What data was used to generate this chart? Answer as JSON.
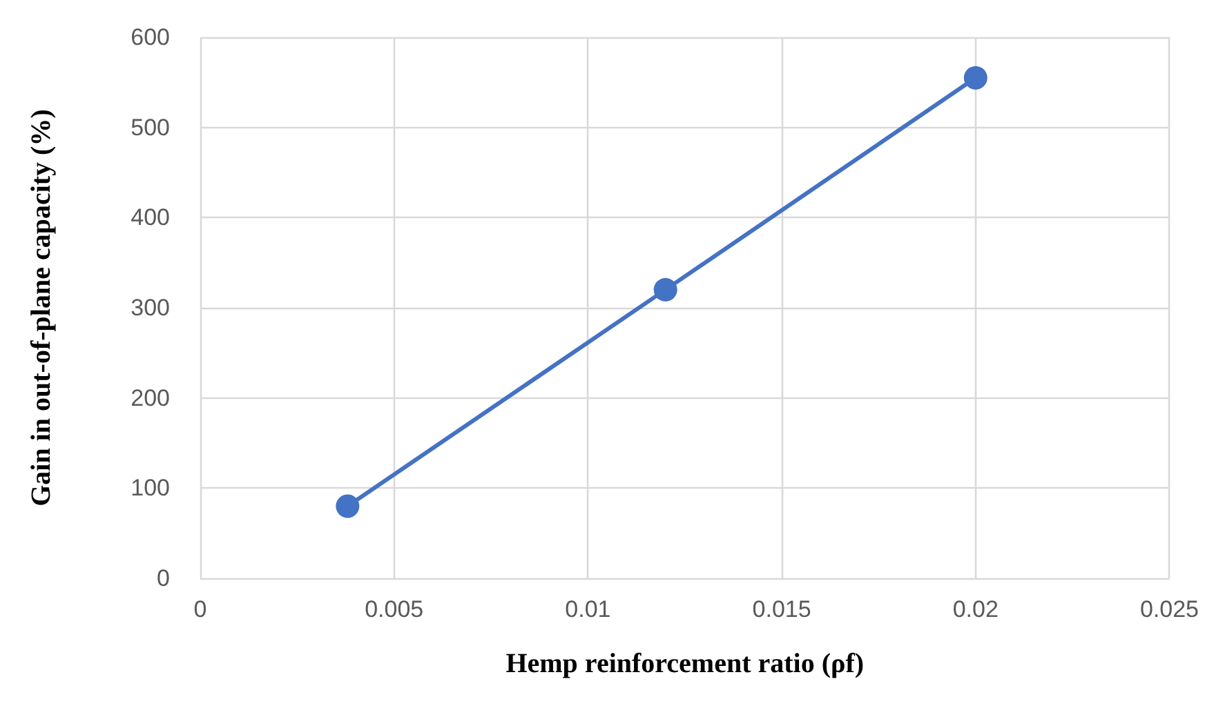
{
  "chart_data": {
    "type": "line",
    "xlabel": "Hemp reinforcement ratio (ρf)",
    "ylabel": "Gain in out-of-plane capacity (%)",
    "x": [
      0.0038,
      0.012,
      0.02
    ],
    "series": [
      {
        "color": "#4472c4",
        "values": [
          80,
          320,
          555
        ]
      }
    ],
    "xlim": [
      0,
      0.025
    ],
    "xticks": [
      0,
      0.005,
      0.01,
      0.015,
      0.02,
      0.025
    ],
    "ylim": [
      0,
      600
    ],
    "yticks": [
      0,
      100,
      200,
      300,
      400,
      500,
      600
    ],
    "grid": true,
    "marker": "circle",
    "line_style": "solid"
  }
}
